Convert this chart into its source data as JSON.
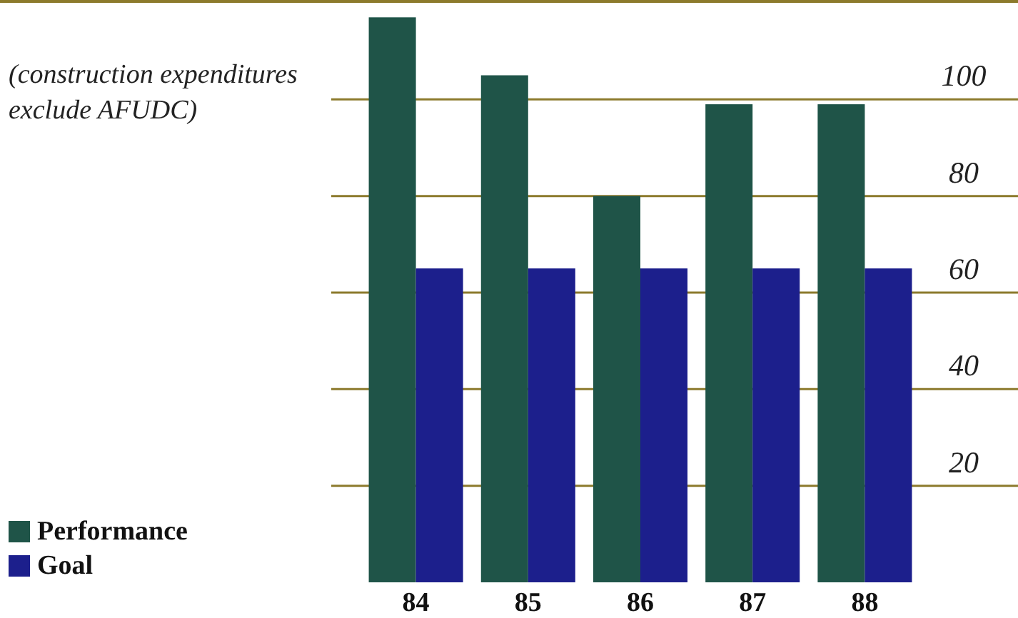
{
  "chart_data": {
    "type": "bar",
    "categories": [
      "84",
      "85",
      "86",
      "87",
      "88"
    ],
    "series": [
      {
        "name": "Performance",
        "color": "#1f5448",
        "values": [
          117,
          105,
          80,
          99,
          99
        ]
      },
      {
        "name": "Goal",
        "color": "#1c1f8c",
        "values": [
          65,
          65,
          65,
          65,
          65
        ]
      }
    ],
    "ylim": [
      0,
      120
    ],
    "yticks": [
      20,
      40,
      60,
      80,
      100
    ],
    "grid": "y",
    "legend": "bottom left",
    "annotations": [
      "(construction expenditures exclude AFUDC)"
    ]
  }
}
